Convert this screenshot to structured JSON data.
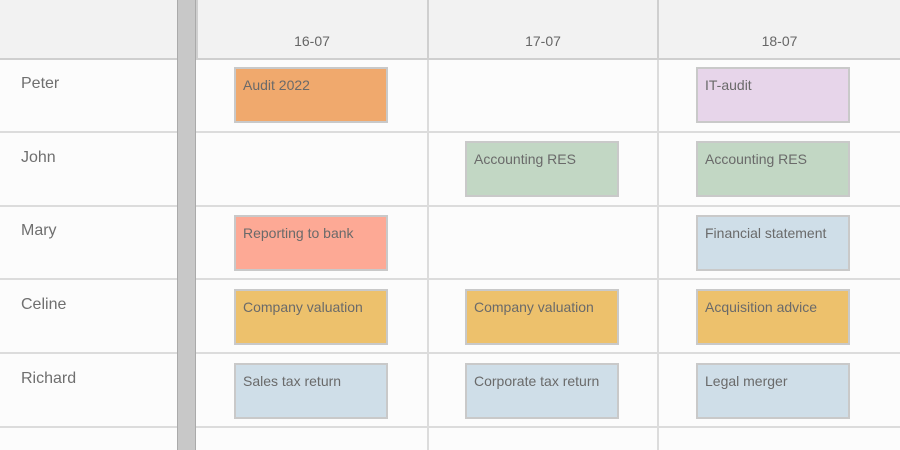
{
  "dates": [
    "16-07",
    "17-07",
    "18-07"
  ],
  "resources": [
    "Peter",
    "John",
    "Mary",
    "Celine",
    "Richard"
  ],
  "colors": {
    "orange": "#f0a96d",
    "purple": "#e7d5ea",
    "green": "#c2d7c4",
    "salmon": "#fda995",
    "blue": "#cfdee8",
    "yellow": "#edc16c"
  },
  "events": {
    "peter": {
      "d1": "Audit 2022",
      "d3": "IT-audit"
    },
    "john": {
      "d2": "Accounting RES",
      "d3": "Accounting RES"
    },
    "mary": {
      "d1": "Reporting to bank",
      "d3": "Financial statement"
    },
    "celine": {
      "d1": "Company valuation",
      "d2": "Company valuation",
      "d3": "Acquisition advice"
    },
    "richard": {
      "d1": "Sales tax return",
      "d2": "Corporate tax return",
      "d3": "Legal merger"
    }
  }
}
